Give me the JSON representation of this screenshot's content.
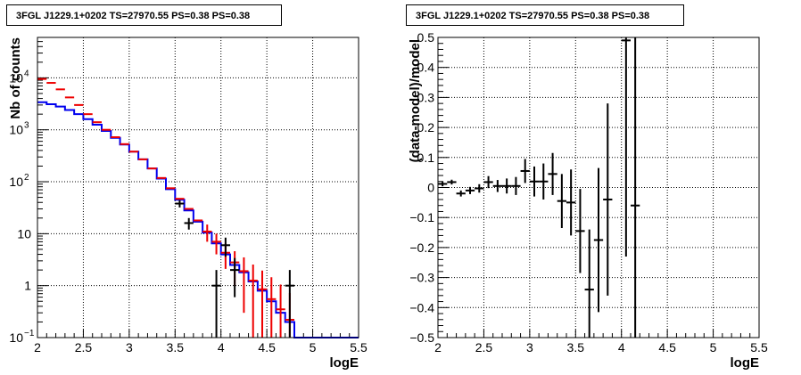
{
  "panels": [
    {
      "title": "3FGL J1229.1+0202 TS=27970.55 PS=0.38 PS=0.38"
    },
    {
      "title": "3FGL J1229.1+0202 TS=27970.55 PS=0.38 PS=0.38"
    }
  ],
  "chart_data": [
    {
      "type": "line",
      "title": "3FGL J1229.1+0202 TS=27970.55 PS=0.38 PS=0.38",
      "xlabel": "logE",
      "ylabel": "Nb of counts",
      "xlim": [
        2,
        5.5
      ],
      "ylim": [
        0.1,
        60000
      ],
      "yscale": "log",
      "grid": true,
      "x_ticks": [
        "2",
        "2.5",
        "3",
        "3.5",
        "4",
        "4.5",
        "5",
        "5.5"
      ],
      "y_ticks": [
        "10^-1",
        "1",
        "10",
        "10^2",
        "10^3",
        "10^4"
      ],
      "bin_edges": [
        2.0,
        2.1,
        2.2,
        2.3,
        2.4,
        2.5,
        2.6,
        2.7,
        2.8,
        2.9,
        3.0,
        3.1,
        3.2,
        3.3,
        3.4,
        3.5,
        3.6,
        3.7,
        3.8,
        3.9,
        4.0,
        4.1,
        4.2,
        4.3,
        4.4,
        4.5,
        4.6,
        4.7,
        4.8,
        5.5
      ],
      "series": [
        {
          "color": "#0000ee",
          "style": "histogram",
          "values": [
            3400,
            3100,
            2800,
            2400,
            2000,
            1600,
            1250,
            950,
            700,
            520,
            380,
            270,
            180,
            115,
            72,
            45,
            28,
            17,
            10.5,
            6.5,
            4,
            2.5,
            1.8,
            1.2,
            0.8,
            0.5,
            0.3,
            0.2,
            0.1
          ]
        },
        {
          "color": "#ee0000",
          "style": "errorbars",
          "x": [
            2.05,
            2.15,
            2.25,
            2.35,
            2.45,
            2.55,
            2.65,
            2.75,
            2.85,
            2.95,
            3.05,
            3.15,
            3.25,
            3.35,
            3.45,
            3.55,
            3.65,
            3.75,
            3.85,
            3.95,
            4.05,
            4.15,
            4.25,
            4.35,
            4.45,
            4.55,
            4.65,
            4.75
          ],
          "y": [
            9500,
            8000,
            6000,
            4200,
            3000,
            2000,
            1400,
            1000,
            720,
            530,
            380,
            270,
            180,
            118,
            75,
            47,
            30,
            18,
            11,
            7,
            4.3,
            2.8,
            1.9,
            1.25,
            0.85,
            0.55,
            0.35,
            0.22
          ],
          "err": [
            0,
            0,
            0,
            0,
            0,
            0,
            0,
            0,
            0,
            0,
            0,
            0,
            0,
            0,
            0,
            0,
            0,
            0,
            4,
            3,
            2.2,
            1.8,
            1.6,
            1.3,
            1.1,
            0.9,
            0.7,
            0.5
          ]
        },
        {
          "color": "#000000",
          "style": "errorbars",
          "x": [
            3.55,
            3.65,
            3.95,
            4.05,
            4.15,
            4.75
          ],
          "y": [
            38,
            16,
            1,
            6,
            2,
            1
          ],
          "err": [
            6,
            4,
            1,
            2.4,
            1.4,
            1
          ]
        }
      ]
    },
    {
      "type": "scatter",
      "title": "3FGL J1229.1+0202 TS=27970.55 PS=0.38 PS=0.38",
      "xlabel": "logE",
      "ylabel": "(data-model)/model",
      "xlim": [
        2,
        5.5
      ],
      "ylim": [
        -0.5,
        0.5
      ],
      "grid": true,
      "x_ticks": [
        "2",
        "2.5",
        "3",
        "3.5",
        "4",
        "4.5",
        "5",
        "5.5"
      ],
      "y_ticks": [
        "-0.5",
        "-0.4",
        "-0.3",
        "-0.2",
        "-0.1",
        "0",
        "0.1",
        "0.2",
        "0.3",
        "0.4",
        "0.5"
      ],
      "series": [
        {
          "color": "#000000",
          "x": [
            2.05,
            2.15,
            2.25,
            2.35,
            2.45,
            2.55,
            2.65,
            2.75,
            2.85,
            2.95,
            3.05,
            3.15,
            3.25,
            3.35,
            3.45,
            3.55,
            3.65,
            3.75,
            3.85,
            4.05,
            4.15
          ],
          "y": [
            0.012,
            0.018,
            -0.02,
            -0.01,
            -0.003,
            0.018,
            0.005,
            0.005,
            0.005,
            0.055,
            0.02,
            0.02,
            0.045,
            -0.045,
            -0.05,
            -0.145,
            -0.34,
            -0.175,
            -0.04,
            0.49,
            -0.06
          ],
          "err": [
            0.008,
            0.008,
            0.01,
            0.012,
            0.014,
            0.02,
            0.02,
            0.025,
            0.03,
            0.04,
            0.05,
            0.06,
            0.07,
            0.09,
            0.11,
            0.14,
            0.2,
            0.24,
            0.32,
            0.72,
            0.72
          ]
        }
      ]
    }
  ]
}
